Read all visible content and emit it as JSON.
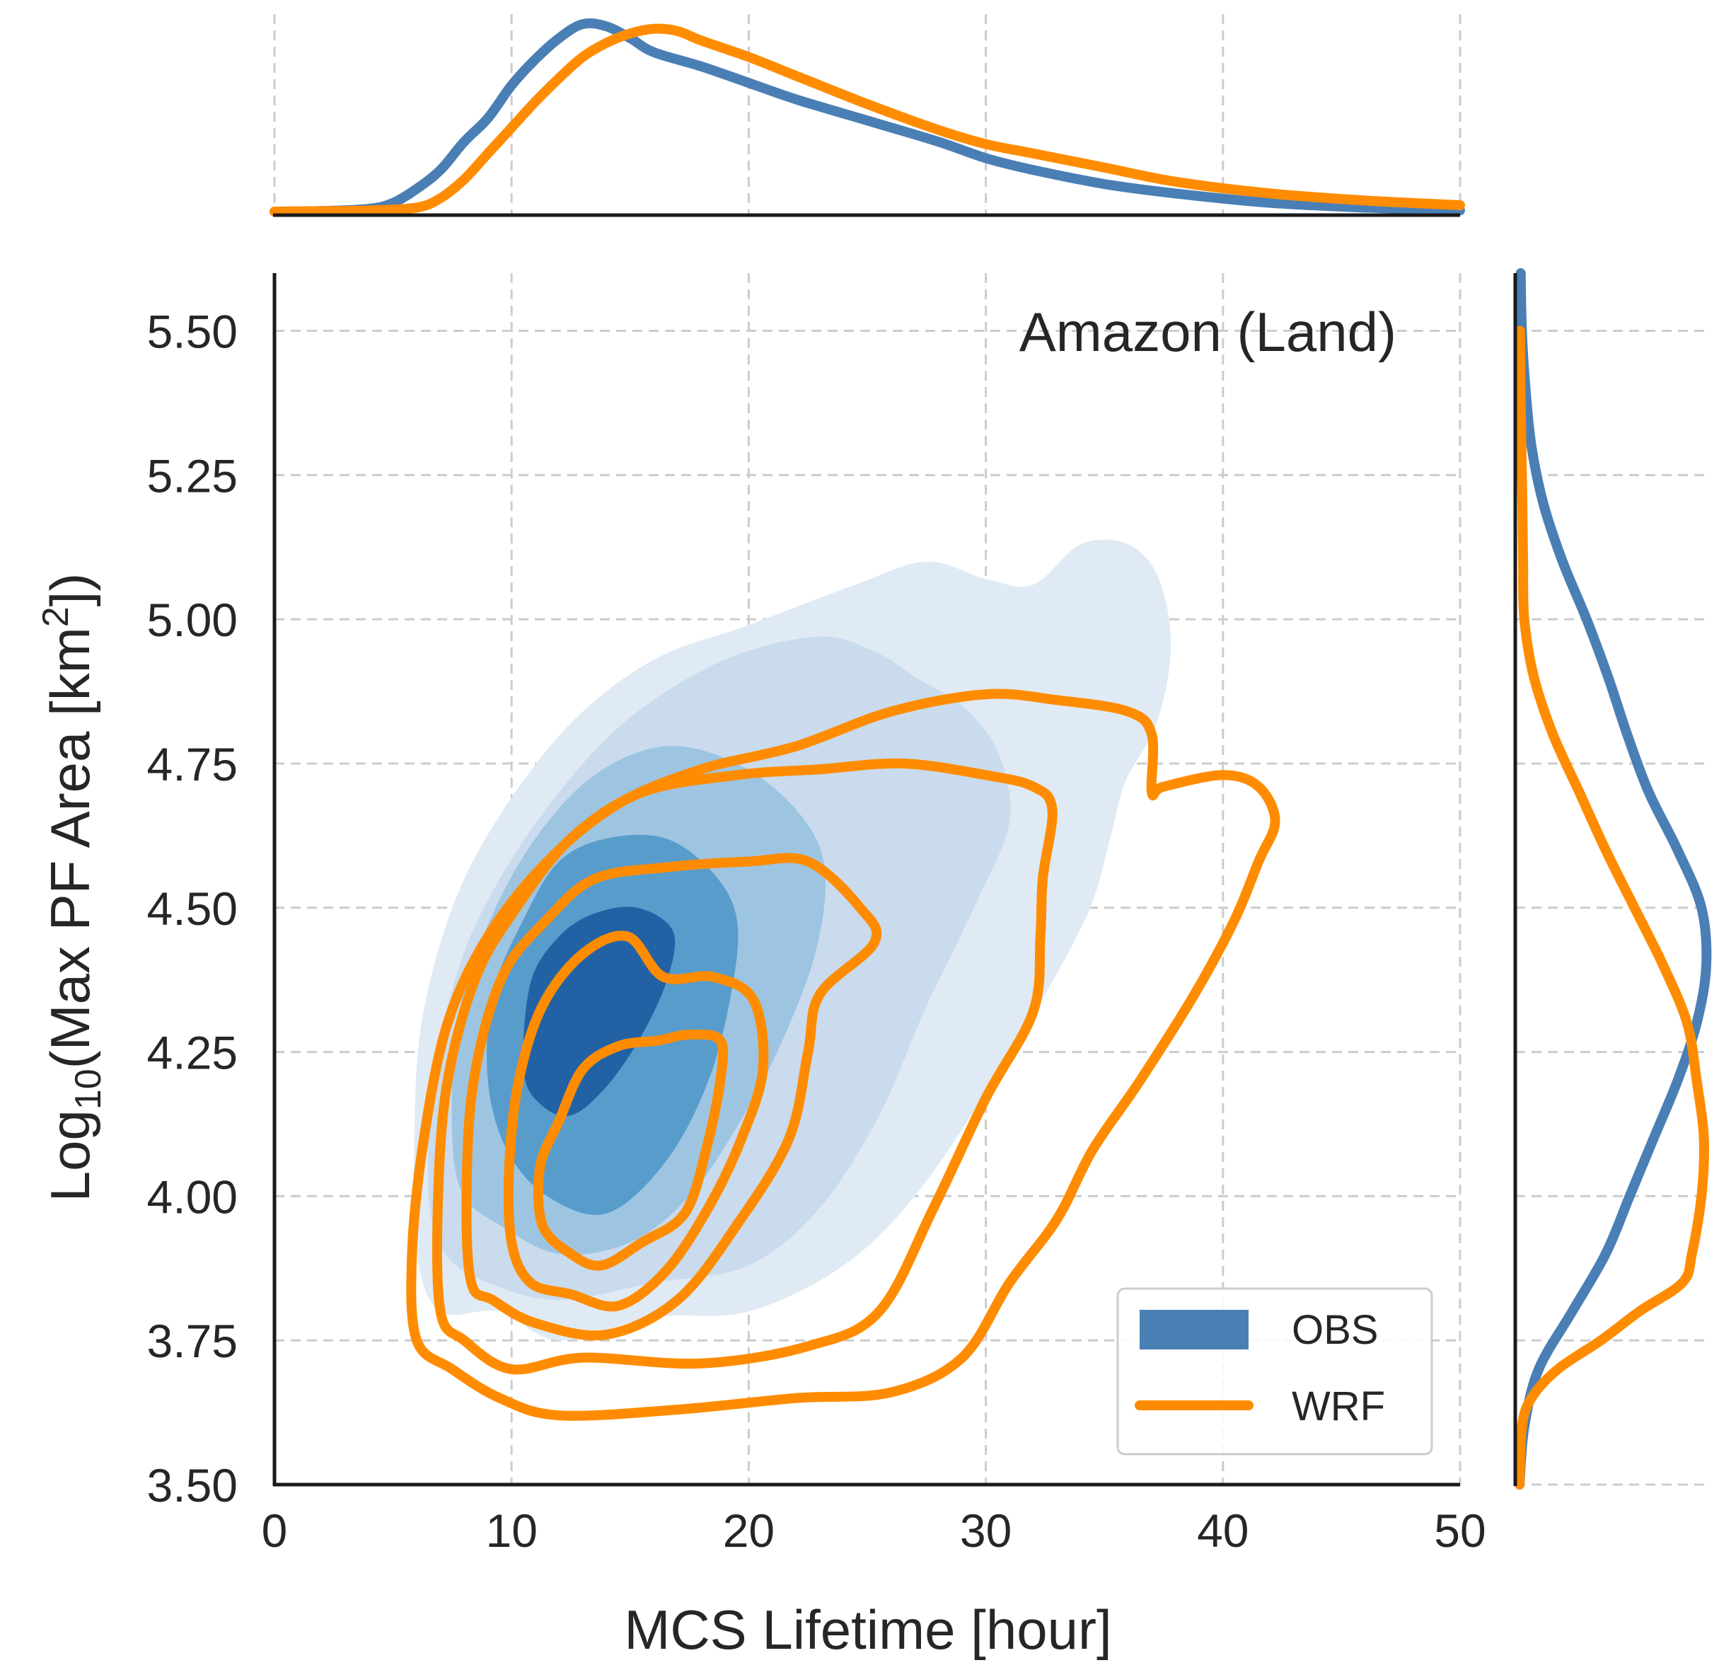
{
  "chart_data": {
    "type": "jointplot-kde",
    "annotation": "Amazon (Land)",
    "xlabel": "MCS Lifetime [hour]",
    "ylabel": {
      "base": "Log",
      "sub": "10",
      "mid": "(Max PF Area [km",
      "sup": "2",
      "end": "])"
    },
    "xlim": [
      0,
      50
    ],
    "ylim": [
      3.5,
      5.6
    ],
    "xticks": [
      0,
      10,
      20,
      30,
      40,
      50
    ],
    "xtick_labels": [
      "0",
      "10",
      "20",
      "30",
      "40",
      "50"
    ],
    "yticks": [
      3.5,
      3.75,
      4.0,
      4.25,
      4.5,
      4.75,
      5.0,
      5.25,
      5.5
    ],
    "ytick_labels": [
      "3.50",
      "3.75",
      "4.00",
      "4.25",
      "4.50",
      "4.75",
      "5.00",
      "5.25",
      "5.50"
    ],
    "grid": true,
    "legend": {
      "location": "lower-right",
      "entries": [
        {
          "label": "OBS",
          "kind": "filled",
          "color": "#4a7fb5"
        },
        {
          "label": "WRF",
          "kind": "line",
          "color": "#ff8c00"
        }
      ]
    },
    "colors": {
      "obs": "#4a7fb5",
      "wrf": "#ff8c00"
    },
    "obs_fill_colors": [
      "#dfeaf5",
      "#c9dbed",
      "#9dc5e1",
      "#589ccc",
      "#2361a5"
    ],
    "obs_filled_contours": [
      {
        "level": 1,
        "points": [
          [
            6.0,
            3.9
          ],
          [
            5.9,
            4.1
          ],
          [
            6.2,
            4.3
          ],
          [
            7.5,
            4.5
          ],
          [
            9.5,
            4.66
          ],
          [
            12.5,
            4.82
          ],
          [
            16,
            4.93
          ],
          [
            20,
            4.99
          ],
          [
            24.5,
            5.06
          ],
          [
            27.5,
            5.1
          ],
          [
            30,
            5.07
          ],
          [
            32,
            5.06
          ],
          [
            34,
            5.13
          ],
          [
            36,
            5.13
          ],
          [
            37.3,
            5.07
          ],
          [
            37.8,
            4.95
          ],
          [
            37.2,
            4.82
          ],
          [
            35.9,
            4.72
          ],
          [
            35.3,
            4.63
          ],
          [
            34.4,
            4.5
          ],
          [
            32.5,
            4.35
          ],
          [
            30,
            4.18
          ],
          [
            27,
            4.0
          ],
          [
            24,
            3.88
          ],
          [
            20,
            3.8
          ],
          [
            16,
            3.79
          ],
          [
            12,
            3.75
          ],
          [
            9.5,
            3.8
          ],
          [
            7,
            3.8
          ]
        ]
      },
      {
        "level": 2,
        "points": [
          [
            6.5,
            4.0
          ],
          [
            6.7,
            4.2
          ],
          [
            7.8,
            4.4
          ],
          [
            9.5,
            4.55
          ],
          [
            12,
            4.7
          ],
          [
            15,
            4.83
          ],
          [
            19,
            4.93
          ],
          [
            23,
            4.97
          ],
          [
            25.5,
            4.94
          ],
          [
            27,
            4.9
          ],
          [
            29,
            4.85
          ],
          [
            30.5,
            4.77
          ],
          [
            31,
            4.65
          ],
          [
            29.5,
            4.5
          ],
          [
            27.5,
            4.33
          ],
          [
            25.5,
            4.14
          ],
          [
            23,
            3.98
          ],
          [
            20,
            3.88
          ],
          [
            16,
            3.85
          ],
          [
            12,
            3.82
          ],
          [
            9,
            3.85
          ],
          [
            7.2,
            3.9
          ]
        ]
      },
      {
        "level": 3,
        "points": [
          [
            7.5,
            4.1
          ],
          [
            7.7,
            4.3
          ],
          [
            9,
            4.47
          ],
          [
            11,
            4.62
          ],
          [
            13.5,
            4.73
          ],
          [
            16.5,
            4.78
          ],
          [
            19.5,
            4.75
          ],
          [
            22,
            4.67
          ],
          [
            23.2,
            4.57
          ],
          [
            22.8,
            4.42
          ],
          [
            21.2,
            4.25
          ],
          [
            19.5,
            4.12
          ],
          [
            17.5,
            4.0
          ],
          [
            15,
            3.92
          ],
          [
            12,
            3.9
          ],
          [
            9.5,
            3.95
          ],
          [
            8,
            4.0
          ]
        ]
      },
      {
        "level": 4,
        "points": [
          [
            9.0,
            4.2
          ],
          [
            9.2,
            4.35
          ],
          [
            10.5,
            4.48
          ],
          [
            12,
            4.58
          ],
          [
            14,
            4.62
          ],
          [
            16.5,
            4.62
          ],
          [
            18.5,
            4.56
          ],
          [
            19.5,
            4.48
          ],
          [
            19.3,
            4.36
          ],
          [
            18.3,
            4.2
          ],
          [
            16.5,
            4.06
          ],
          [
            14,
            3.97
          ],
          [
            11.5,
            4.0
          ],
          [
            9.8,
            4.08
          ]
        ]
      },
      {
        "level": 5,
        "points": [
          [
            10.5,
            4.22
          ],
          [
            10.8,
            4.37
          ],
          [
            12,
            4.45
          ],
          [
            13.5,
            4.49
          ],
          [
            15.3,
            4.5
          ],
          [
            16.8,
            4.46
          ],
          [
            16.6,
            4.38
          ],
          [
            15.5,
            4.28
          ],
          [
            14,
            4.19
          ],
          [
            12.5,
            4.14
          ],
          [
            11.2,
            4.16
          ]
        ]
      }
    ],
    "wrf_contours": [
      {
        "level": 1,
        "points": [
          [
            6.0,
            3.75
          ],
          [
            5.8,
            3.9
          ],
          [
            6.3,
            4.1
          ],
          [
            7.3,
            4.3
          ],
          [
            9.0,
            4.45
          ],
          [
            11.5,
            4.58
          ],
          [
            14.5,
            4.68
          ],
          [
            18,
            4.74
          ],
          [
            22,
            4.78
          ],
          [
            26,
            4.84
          ],
          [
            30,
            4.87
          ],
          [
            33,
            4.86
          ],
          [
            36,
            4.84
          ],
          [
            37,
            4.8
          ],
          [
            37.0,
            4.7
          ],
          [
            37.5,
            4.71
          ],
          [
            40,
            4.73
          ],
          [
            41.5,
            4.71
          ],
          [
            42.2,
            4.65
          ],
          [
            41.5,
            4.58
          ],
          [
            40.5,
            4.48
          ],
          [
            38.8,
            4.35
          ],
          [
            36.5,
            4.2
          ],
          [
            34.5,
            4.08
          ],
          [
            33,
            3.96
          ],
          [
            31,
            3.85
          ],
          [
            29,
            3.72
          ],
          [
            26,
            3.66
          ],
          [
            22,
            3.65
          ],
          [
            17,
            3.63
          ],
          [
            12,
            3.62
          ],
          [
            9.5,
            3.65
          ],
          [
            7.5,
            3.7
          ]
        ]
      },
      {
        "level": 2,
        "points": [
          [
            7.0,
            3.8
          ],
          [
            6.9,
            4.0
          ],
          [
            7.3,
            4.2
          ],
          [
            8.5,
            4.38
          ],
          [
            10.2,
            4.5
          ],
          [
            12.5,
            4.62
          ],
          [
            15.5,
            4.7
          ],
          [
            19.5,
            4.73
          ],
          [
            23,
            4.74
          ],
          [
            26.5,
            4.75
          ],
          [
            30,
            4.73
          ],
          [
            32,
            4.71
          ],
          [
            32.8,
            4.67
          ],
          [
            32.4,
            4.55
          ],
          [
            32.3,
            4.45
          ],
          [
            32.0,
            4.32
          ],
          [
            30,
            4.17
          ],
          [
            27.8,
            3.98
          ],
          [
            25.5,
            3.8
          ],
          [
            22.5,
            3.74
          ],
          [
            18,
            3.71
          ],
          [
            13,
            3.72
          ],
          [
            10,
            3.7
          ],
          [
            8,
            3.75
          ]
        ]
      },
      {
        "level": 3,
        "points": [
          [
            8.3,
            3.85
          ],
          [
            8.1,
            4.0
          ],
          [
            8.4,
            4.2
          ],
          [
            9.6,
            4.38
          ],
          [
            11.5,
            4.48
          ],
          [
            13.5,
            4.55
          ],
          [
            16.5,
            4.57
          ],
          [
            20,
            4.58
          ],
          [
            22.5,
            4.58
          ],
          [
            24.7,
            4.5
          ],
          [
            25.3,
            4.44
          ],
          [
            23,
            4.35
          ],
          [
            22.5,
            4.25
          ],
          [
            21.7,
            4.1
          ],
          [
            19.5,
            3.95
          ],
          [
            17,
            3.82
          ],
          [
            14,
            3.76
          ],
          [
            11,
            3.78
          ],
          [
            9.2,
            3.82
          ]
        ]
      },
      {
        "level": 4,
        "points": [
          [
            10.0,
            3.92
          ],
          [
            9.9,
            4.05
          ],
          [
            10.3,
            4.2
          ],
          [
            11.3,
            4.33
          ],
          [
            13,
            4.42
          ],
          [
            14.9,
            4.45
          ],
          [
            16.4,
            4.38
          ],
          [
            18.5,
            4.38
          ],
          [
            20.2,
            4.34
          ],
          [
            20.6,
            4.22
          ],
          [
            19.7,
            4.1
          ],
          [
            18.3,
            3.98
          ],
          [
            16.5,
            3.87
          ],
          [
            14.5,
            3.81
          ],
          [
            12.5,
            3.83
          ],
          [
            10.8,
            3.85
          ]
        ]
      },
      {
        "level": 5,
        "points": [
          [
            11.3,
            3.95
          ],
          [
            11.2,
            4.05
          ],
          [
            12,
            4.13
          ],
          [
            13.0,
            4.22
          ],
          [
            14.5,
            4.26
          ],
          [
            16.2,
            4.27
          ],
          [
            17.5,
            4.28
          ],
          [
            18.8,
            4.27
          ],
          [
            18.8,
            4.2
          ],
          [
            18.2,
            4.08
          ],
          [
            17.3,
            3.97
          ],
          [
            15.5,
            3.92
          ],
          [
            13.8,
            3.88
          ],
          [
            12.5,
            3.9
          ]
        ]
      }
    ],
    "top_marginal": {
      "axis": "x",
      "obs": {
        "x": [
          0,
          2,
          4,
          5,
          6,
          7,
          8,
          9,
          10,
          11,
          12,
          13,
          14,
          15,
          16,
          18,
          20,
          22,
          25,
          28,
          30,
          32,
          35,
          38,
          42,
          46,
          50
        ],
        "density": [
          0.0003,
          0.0005,
          0.0015,
          0.004,
          0.01,
          0.018,
          0.03,
          0.04,
          0.054,
          0.065,
          0.074,
          0.08,
          0.079,
          0.074,
          0.068,
          0.062,
          0.055,
          0.048,
          0.039,
          0.03,
          0.023,
          0.018,
          0.012,
          0.008,
          0.004,
          0.002,
          0.0008
        ]
      },
      "wrf": {
        "x": [
          0,
          2,
          4,
          6,
          7,
          8,
          9,
          10,
          11,
          12,
          13,
          14,
          15,
          16,
          17,
          18,
          20,
          22,
          25,
          28,
          30,
          32,
          35,
          38,
          42,
          46,
          50
        ],
        "density": [
          0.0003,
          0.0005,
          0.0008,
          0.002,
          0.006,
          0.014,
          0.025,
          0.036,
          0.047,
          0.057,
          0.066,
          0.072,
          0.076,
          0.078,
          0.077,
          0.073,
          0.066,
          0.058,
          0.046,
          0.035,
          0.029,
          0.025,
          0.019,
          0.013,
          0.008,
          0.005,
          0.003
        ]
      }
    },
    "right_marginal": {
      "axis": "y",
      "obs": {
        "y": [
          3.5,
          3.6,
          3.7,
          3.8,
          3.9,
          4.0,
          4.1,
          4.2,
          4.3,
          4.4,
          4.5,
          4.6,
          4.7,
          4.8,
          4.9,
          5.0,
          5.1,
          5.2,
          5.3,
          5.4,
          5.5,
          5.6
        ],
        "density": [
          0.0,
          0.02,
          0.08,
          0.22,
          0.36,
          0.46,
          0.56,
          0.66,
          0.74,
          0.78,
          0.76,
          0.66,
          0.54,
          0.45,
          0.37,
          0.28,
          0.18,
          0.1,
          0.05,
          0.025,
          0.01,
          0.005
        ]
      },
      "wrf": {
        "y": [
          3.5,
          3.6,
          3.65,
          3.7,
          3.75,
          3.8,
          3.85,
          3.9,
          4.0,
          4.1,
          4.2,
          4.3,
          4.4,
          4.5,
          4.6,
          4.7,
          4.8,
          4.9,
          5.0,
          5.1,
          5.2,
          5.3,
          5.4,
          5.5
        ],
        "density": [
          0.0,
          0.01,
          0.05,
          0.16,
          0.34,
          0.5,
          0.68,
          0.72,
          0.76,
          0.77,
          0.74,
          0.7,
          0.6,
          0.48,
          0.36,
          0.25,
          0.14,
          0.06,
          0.02,
          0.015,
          0.012,
          0.008,
          0.004,
          0.002
        ]
      }
    }
  }
}
